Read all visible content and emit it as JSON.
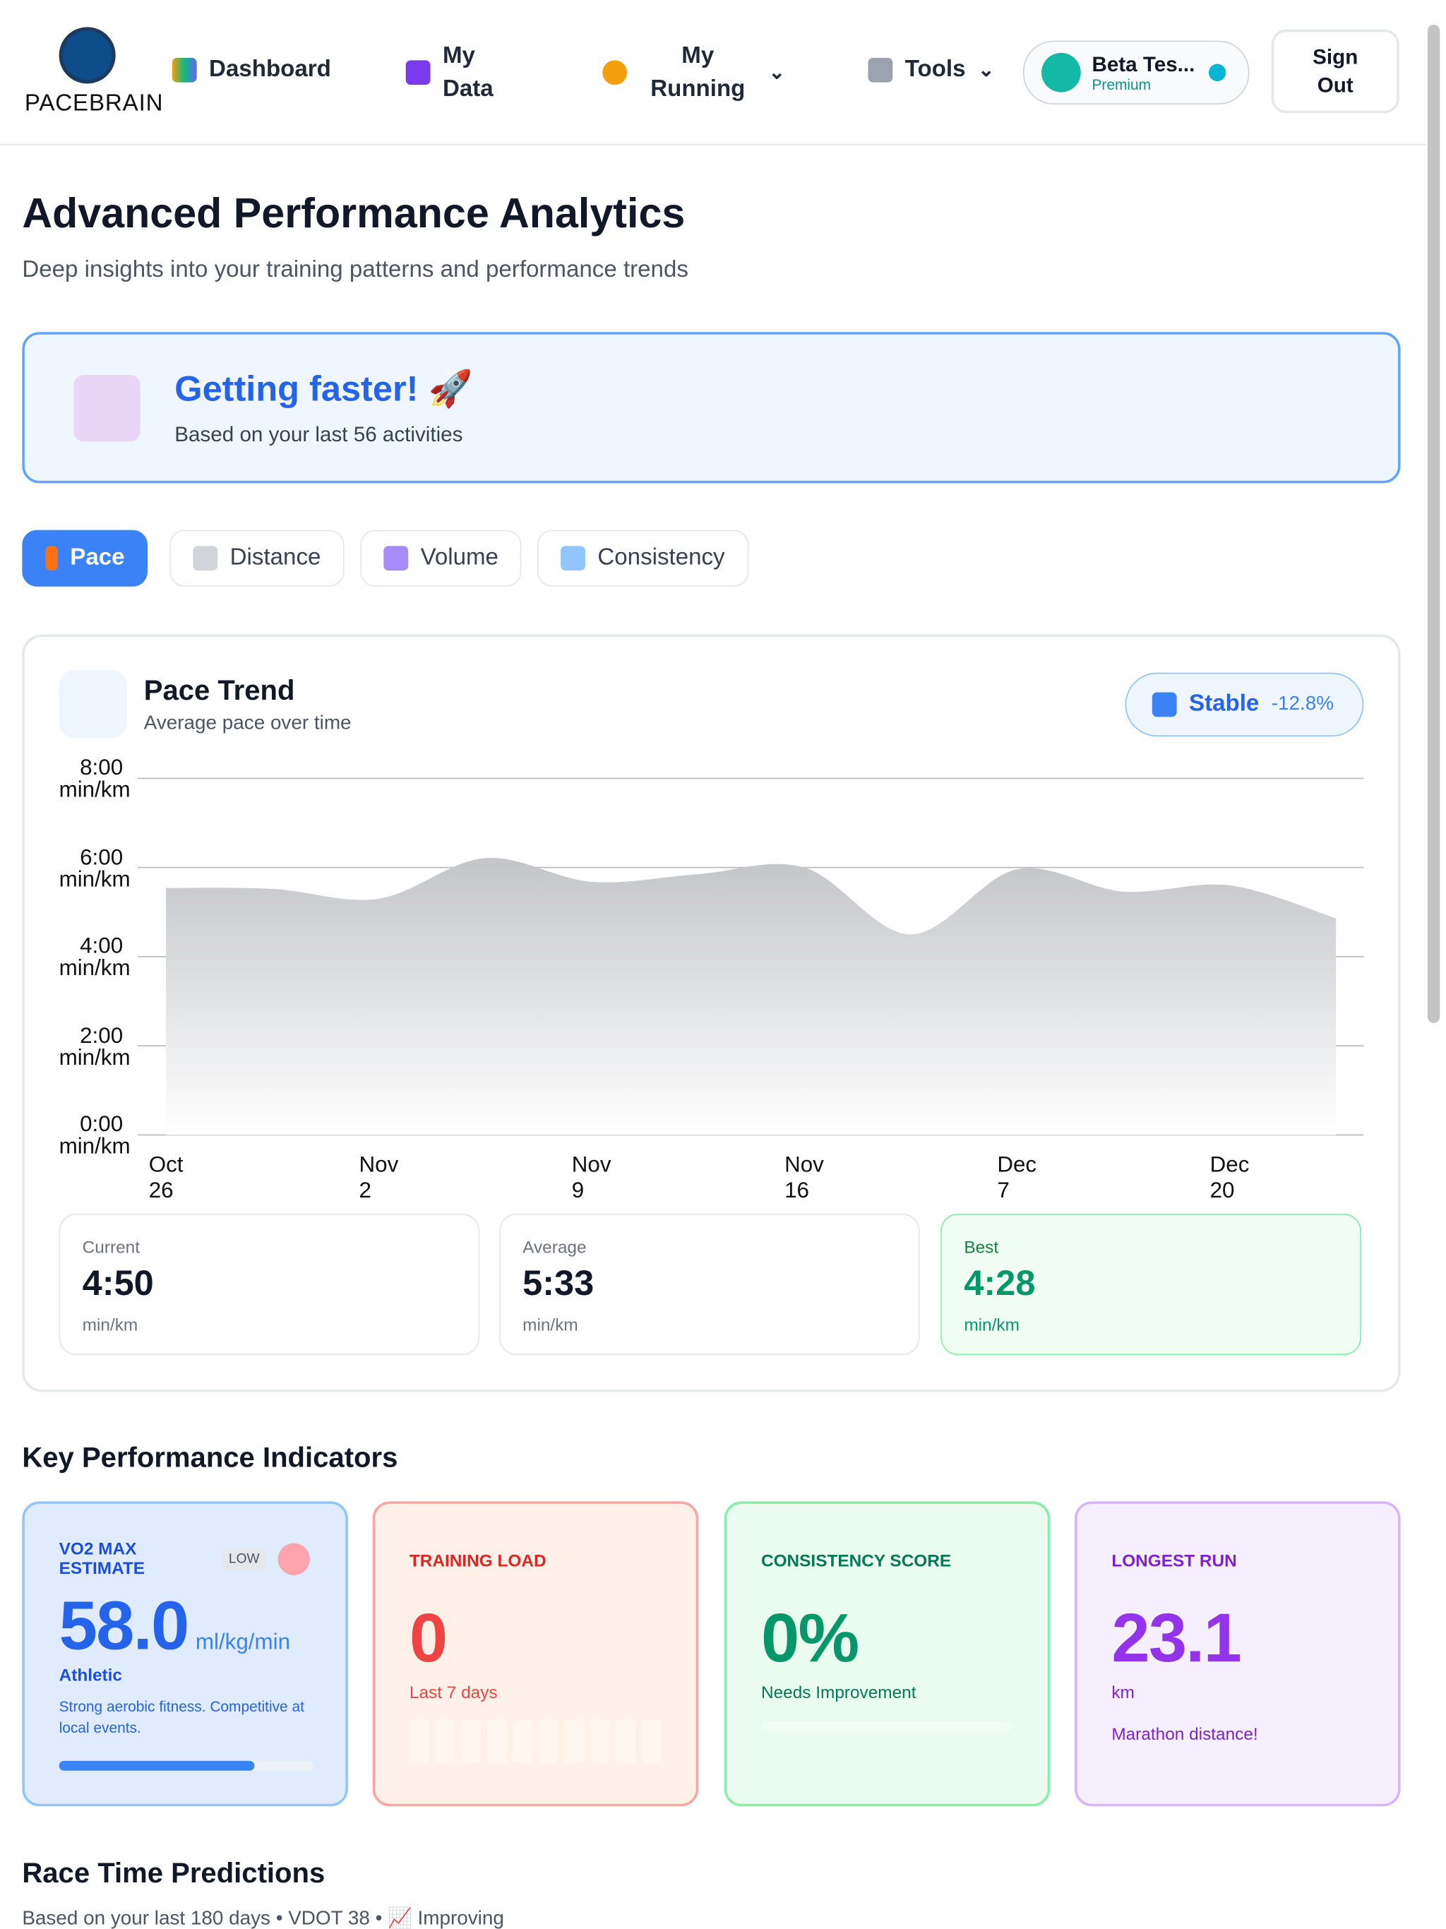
{
  "nav": {
    "brand": "PACEBRAIN",
    "items": [
      "Dashboard",
      "My Data",
      "My Running",
      "Tools"
    ],
    "user": {
      "name": "Beta Tes...",
      "plan": "Premium"
    },
    "sign_out": "Sign Out"
  },
  "header": {
    "title": "Advanced Performance Analytics",
    "subtitle": "Deep insights into your training patterns and performance trends"
  },
  "banner": {
    "title": "Getting faster! 🚀",
    "text": "Based on your last 56 activities"
  },
  "tabs": [
    "Pace",
    "Distance",
    "Volume",
    "Consistency"
  ],
  "chart_card": {
    "title": "Pace Trend",
    "subtitle": "Average pace over time",
    "trend": {
      "label": "Stable",
      "change": "-12.8%"
    },
    "chart_data": {
      "type": "area",
      "color": "#c7c8cc",
      "categories": [
        "Oct 26",
        null,
        "Nov 2",
        null,
        "Nov 9",
        null,
        "Nov 16",
        null,
        "Dec 7",
        null,
        "Dec 20",
        null
      ],
      "values": [
        5.54,
        5.52,
        5.3,
        6.21,
        5.68,
        5.85,
        6.0,
        4.5,
        5.96,
        5.46,
        5.6,
        4.86
      ],
      "ylim": [
        0,
        8
      ],
      "yticks": [
        {
          "value": 0,
          "label": "0:00 min/km"
        },
        {
          "value": 2,
          "label": "2:00 min/km"
        },
        {
          "value": 4,
          "label": "4:00 min/km"
        },
        {
          "value": 6,
          "label": "6:00 min/km"
        },
        {
          "value": 8,
          "label": "8:00 min/km"
        }
      ],
      "grid": true
    },
    "stats": [
      {
        "label": "Current",
        "value": "4:50",
        "unit": "min/km"
      },
      {
        "label": "Average",
        "value": "5:33",
        "unit": "min/km"
      },
      {
        "label": "Best",
        "value": "4:28",
        "unit": "min/km"
      }
    ]
  },
  "kpi": {
    "title": "Key Performance Indicators",
    "cards": [
      {
        "title": "VO2 MAX ESTIMATE",
        "badge": "LOW",
        "value": "58.0",
        "unit": "ml/kg/min",
        "level": "Athletic",
        "note": "Strong aerobic fitness. Competitive at local events.",
        "progress_percent": 77
      },
      {
        "title": "TRAINING LOAD",
        "value": "0",
        "note": "Last 7 days"
      },
      {
        "title": "CONSISTENCY SCORE",
        "value": "0%",
        "note": "Needs Improvement"
      },
      {
        "title": "LONGEST RUN",
        "value": "23.1",
        "unit": "km",
        "note": "Marathon distance!"
      }
    ]
  },
  "race": {
    "title": "Race Time Predictions",
    "subtitle": "Based on your last 180 days • VDOT 38 • 📈 Improving"
  }
}
